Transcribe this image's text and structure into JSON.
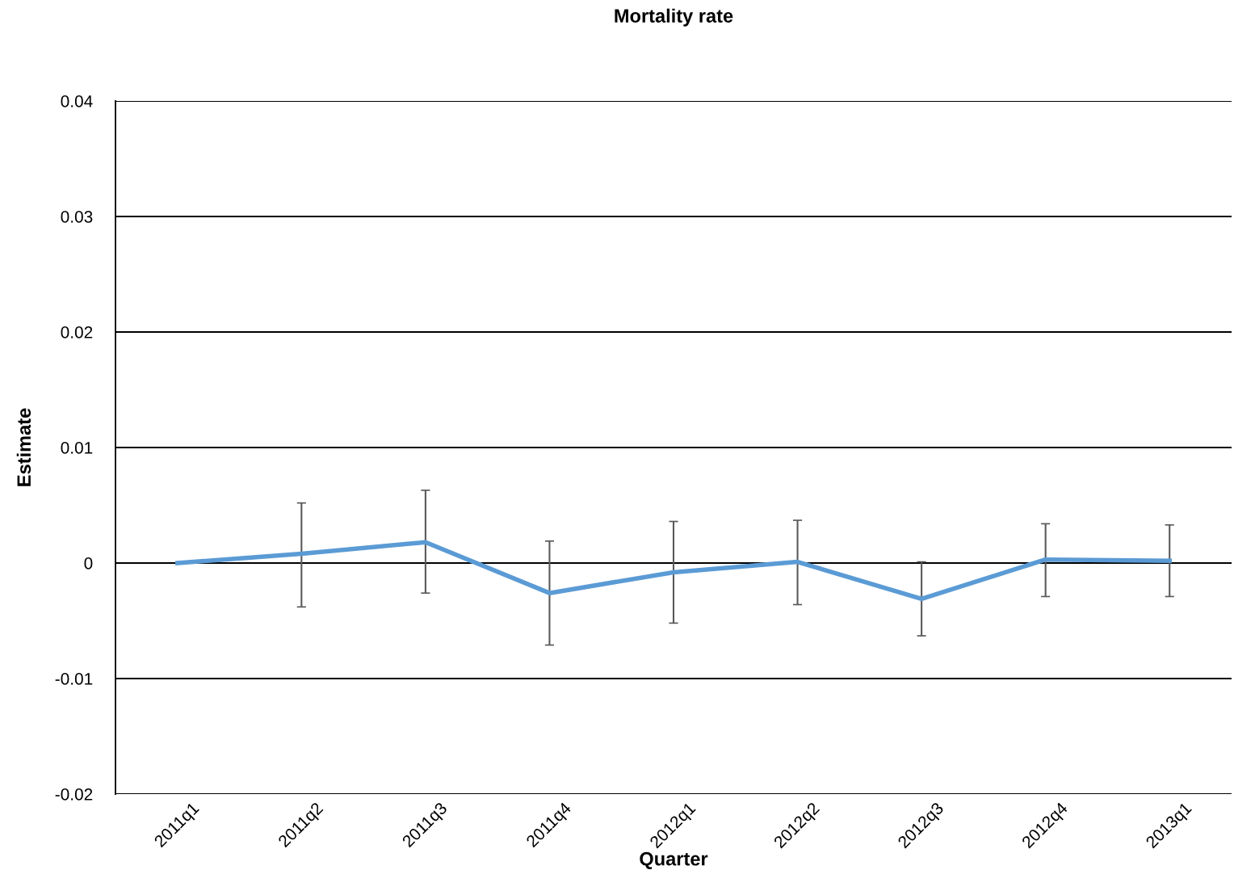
{
  "chart_data": {
    "type": "line",
    "title": "Mortality rate",
    "xlabel": "Quarter",
    "ylabel": "Estimate",
    "categories": [
      "2011q1",
      "2011q2",
      "2011q3",
      "2011q4",
      "2012q1",
      "2012q2",
      "2012q3",
      "2012q4",
      "2013q1"
    ],
    "series": [
      {
        "color": "#5b9bd5",
        "values": [
          0,
          0.0008,
          0.0018,
          -0.0026,
          -0.0008,
          0.0001,
          -0.0031,
          0.0003,
          0.0002
        ],
        "errors": [
          null,
          [
            -0.0038,
            0.0052
          ],
          [
            -0.0026,
            0.0063
          ],
          [
            -0.0071,
            0.0019
          ],
          [
            -0.0052,
            0.0036
          ],
          [
            -0.0036,
            0.0037
          ],
          [
            -0.0063,
            0.0001
          ],
          [
            -0.0029,
            0.0034
          ],
          [
            -0.0029,
            0.0033
          ]
        ]
      }
    ],
    "ylim": [
      -0.02,
      0.04
    ],
    "yticks": [
      -0.02,
      -0.01,
      0,
      0.01,
      0.02,
      0.03,
      0.04
    ],
    "grid": "y",
    "marker": "none",
    "line_style": "solid",
    "legend": false
  }
}
